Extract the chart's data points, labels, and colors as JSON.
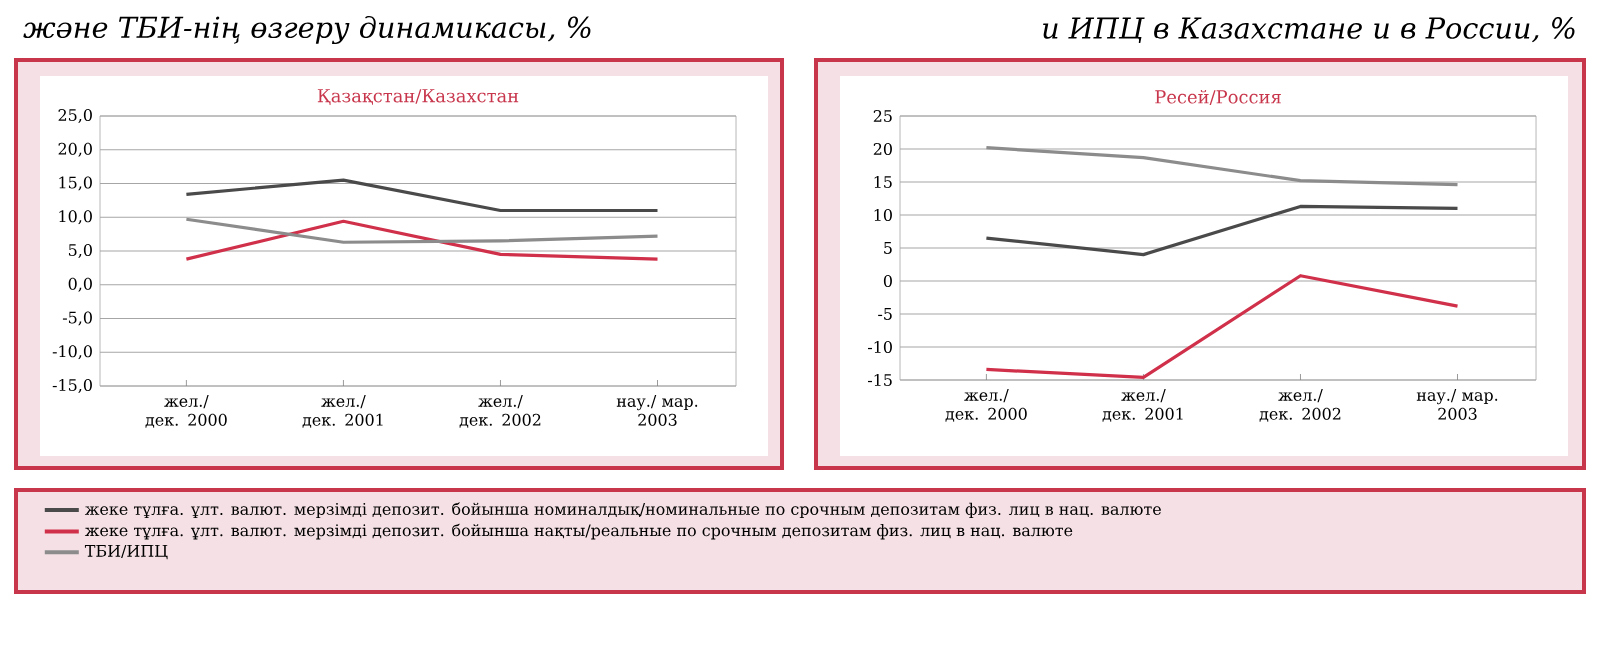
{
  "chart_data": [
    {
      "type": "line",
      "title": "және ТБИ-нің өзгеру динамикасы, %",
      "subtitle": "Қазақстан/Казахстан",
      "categories": [
        "жел./ дек. 2000",
        "жел./ дек. 2001",
        "жел./ дек. 2002",
        "нау./ мар. 2003"
      ],
      "ylim": [
        -15,
        25
      ],
      "yticks": [
        {
          "value": -15,
          "label": "-15,0"
        },
        {
          "value": -10,
          "label": "-10,0"
        },
        {
          "value": -5,
          "label": "-5,0"
        },
        {
          "value": 0,
          "label": "0,0"
        },
        {
          "value": 5,
          "label": "5,0"
        },
        {
          "value": 10,
          "label": "10,0"
        },
        {
          "value": 15,
          "label": "15,0"
        },
        {
          "value": 20,
          "label": "20,0"
        },
        {
          "value": 25,
          "label": "25,0"
        }
      ],
      "grid": "y",
      "legend": "bottom",
      "marker": "none",
      "line_style": "solid",
      "series": [
        {
          "name": "жеке тұлға. ұлт. валют. мерзімді депозит. бойынша номиналдық/номинальные по срочным депозитам физ. лиц в нац. валюте",
          "color": "#4a4a4a",
          "values": [
            13.4,
            15.5,
            11.0,
            11.0
          ]
        },
        {
          "name": "жеке тұлға. ұлт. валют. мерзімді депозит. бойынша нақты/реальные по срочным депозитам физ. лиц в нац. валюте",
          "color": "#d0304a",
          "values": [
            3.8,
            9.4,
            4.5,
            3.8
          ]
        },
        {
          "name": "ТБИ/ИПЦ",
          "color": "#8c8c8c",
          "values": [
            9.7,
            6.3,
            6.5,
            7.2
          ]
        }
      ]
    },
    {
      "type": "line",
      "title": "и ИПЦ в Казахстане и в России, %",
      "subtitle": "Ресей/Россия",
      "categories": [
        "жел./ дек. 2000",
        "жел./ дек. 2001",
        "жел./ дек. 2002",
        "нау./ мар. 2003"
      ],
      "ylim": [
        -15,
        25
      ],
      "yticks": [
        -15,
        -10,
        -5,
        0,
        5,
        10,
        15,
        20,
        25
      ],
      "grid": "y",
      "marker": "none",
      "line_style": "solid",
      "series": [
        {
          "color": "#4a4a4a",
          "values": [
            6.5,
            4.0,
            11.3,
            11.0
          ]
        },
        {
          "color": "#d0304a",
          "values": [
            -13.4,
            -14.6,
            0.8,
            -3.8
          ]
        },
        {
          "color": "#8c8c8c",
          "values": [
            20.2,
            18.7,
            15.2,
            14.6
          ]
        }
      ]
    }
  ]
}
